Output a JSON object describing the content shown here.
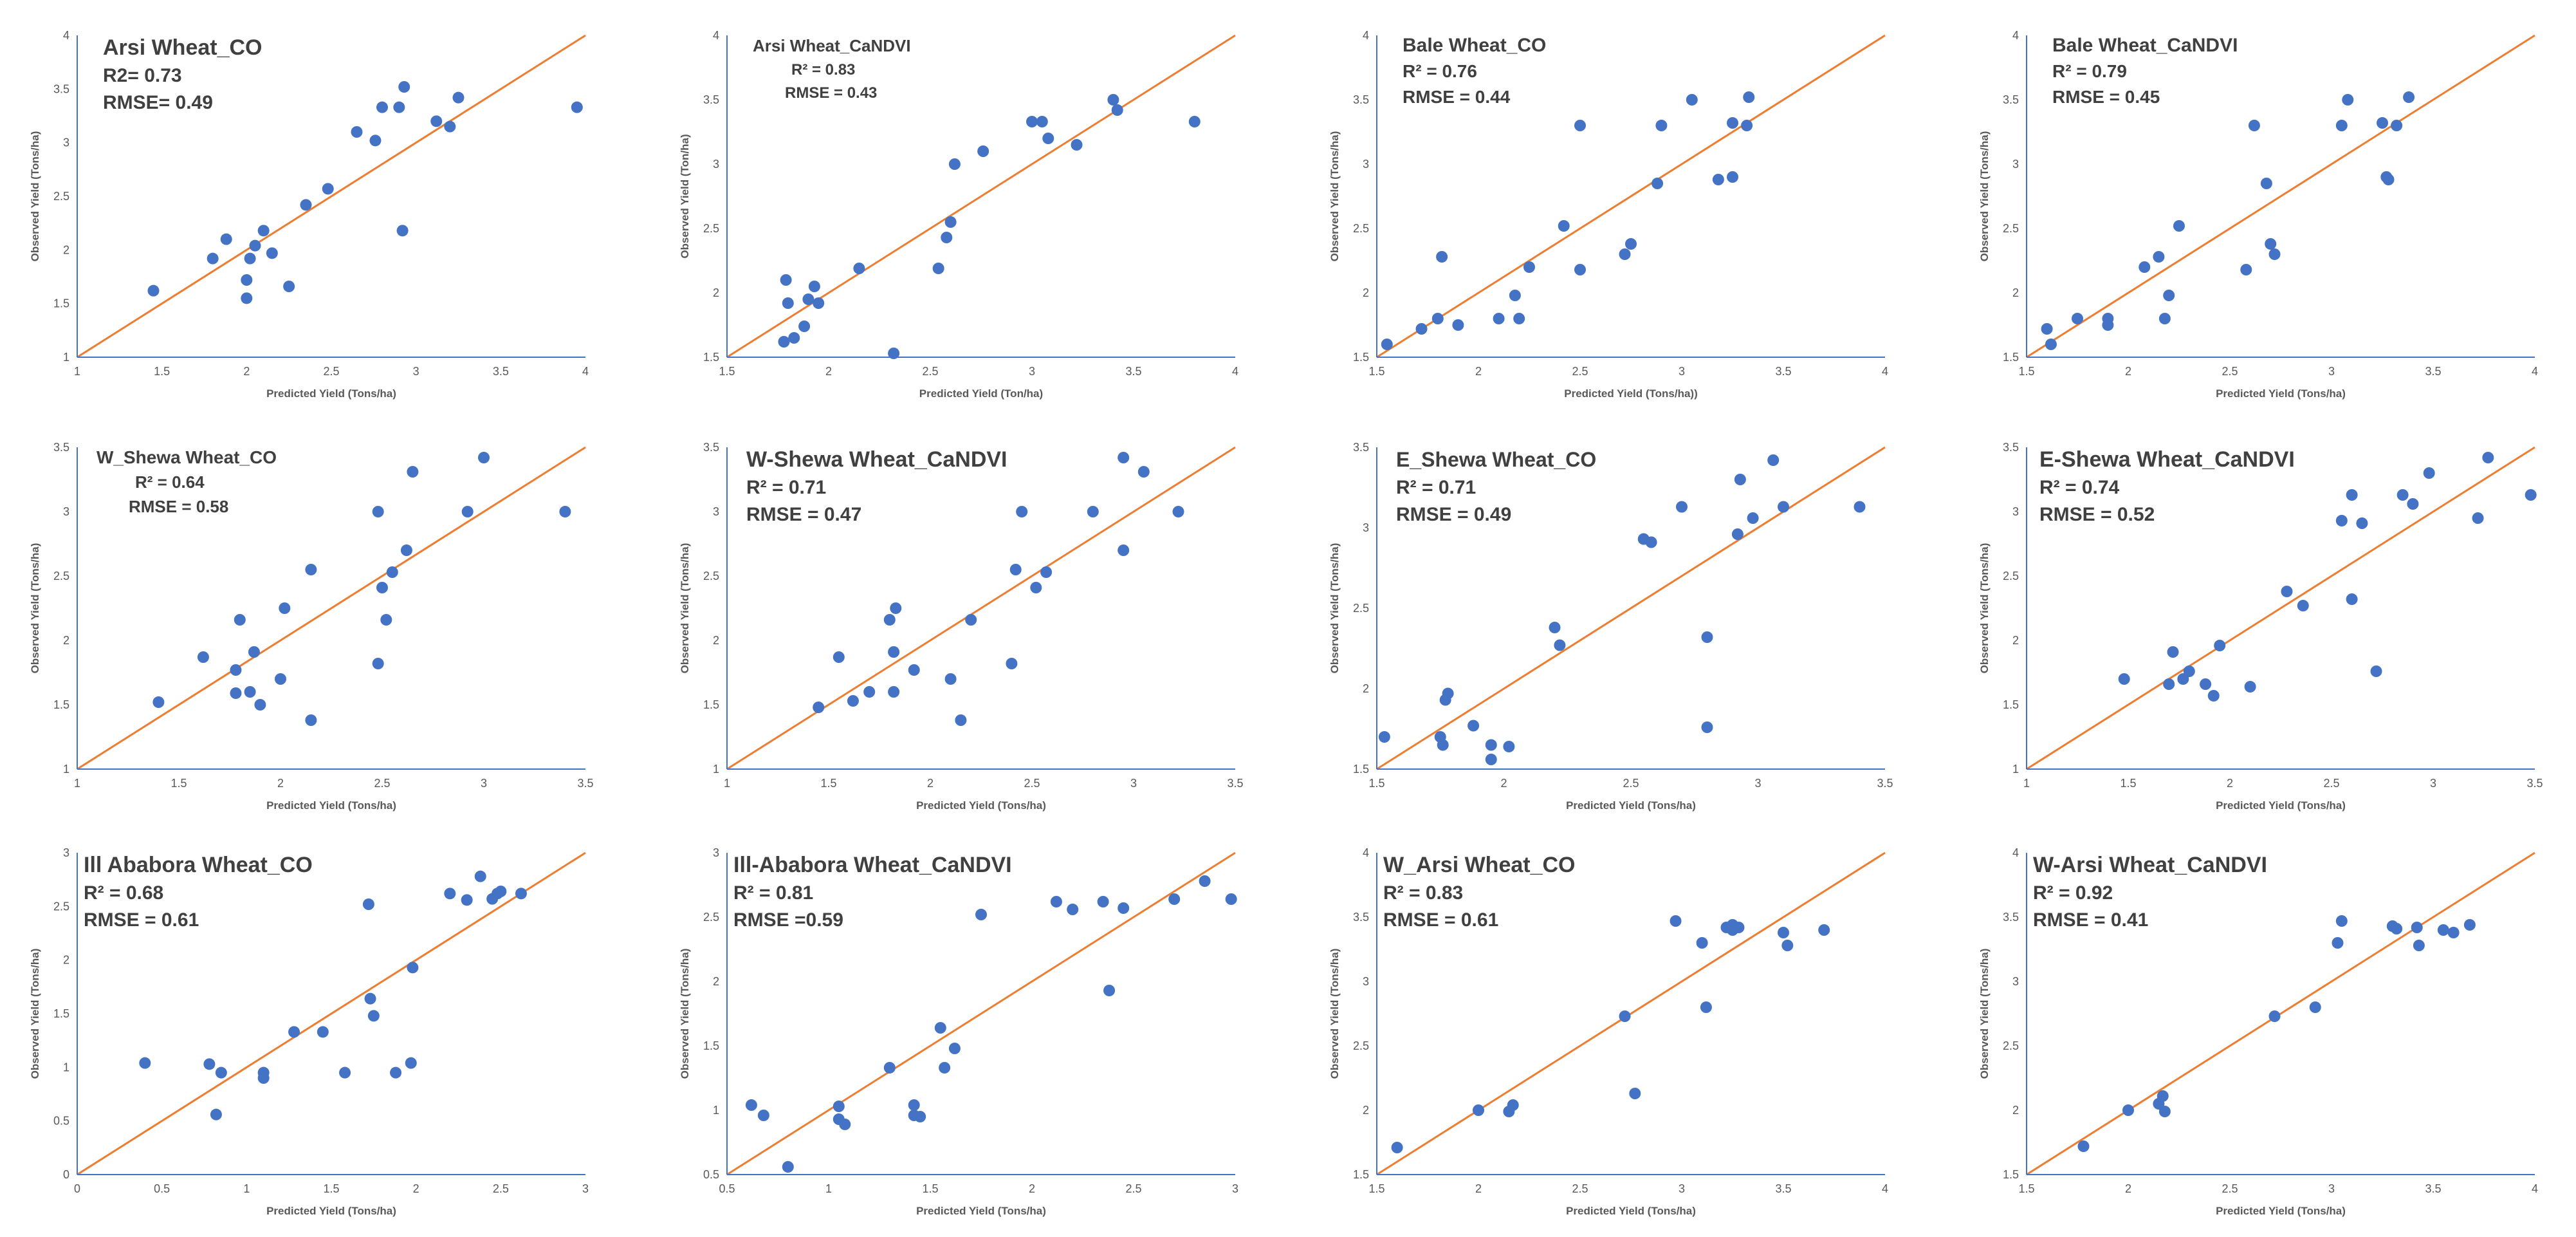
{
  "colors": {
    "point": "#4472C4",
    "line": "#ED7D31",
    "axis": "#4472C4",
    "text": "#404040"
  },
  "chart_data": [
    {
      "type": "scatter",
      "title": "Arsi Wheat_CO",
      "r2": "R2= 0.73",
      "rmse": "RMSE= 0.49",
      "xlabel": "Predicted Yield (Tons/ha)",
      "ylabel": "Observed Yield (Tons/ha)",
      "xlim": [
        1,
        4
      ],
      "ylim": [
        1,
        4
      ],
      "xticks": [
        "1",
        "1.5",
        "2",
        "2.5",
        "3",
        "3.5",
        "4"
      ],
      "yticks": [
        "1",
        "1.5",
        "2",
        "2.5",
        "3",
        "3.5",
        "4"
      ],
      "points": [
        [
          1.45,
          1.62
        ],
        [
          1.8,
          1.92
        ],
        [
          1.88,
          2.1
        ],
        [
          2.0,
          1.72
        ],
        [
          2.0,
          1.55
        ],
        [
          2.02,
          1.92
        ],
        [
          2.05,
          2.04
        ],
        [
          2.1,
          2.18
        ],
        [
          2.15,
          1.97
        ],
        [
          2.25,
          1.66
        ],
        [
          2.35,
          2.42
        ],
        [
          2.48,
          2.57
        ],
        [
          2.65,
          3.1
        ],
        [
          2.76,
          3.02
        ],
        [
          2.8,
          3.33
        ],
        [
          2.9,
          3.33
        ],
        [
          2.92,
          2.18
        ],
        [
          2.93,
          3.52
        ],
        [
          3.12,
          3.2
        ],
        [
          3.2,
          3.15
        ],
        [
          3.25,
          3.42
        ],
        [
          3.95,
          3.33
        ]
      ]
    },
    {
      "type": "scatter",
      "title": "Arsi Wheat_CaNDVI",
      "r2": "R² = 0.83",
      "rmse": "RMSE = 0.43",
      "xlabel": "Predicted Yield (Ton/ha)",
      "ylabel": "Observed Yield (Ton/ha)",
      "xlim": [
        1.5,
        4
      ],
      "ylim": [
        1.5,
        4
      ],
      "xticks": [
        "1.5",
        "2",
        "2.5",
        "3",
        "3.5",
        "4"
      ],
      "yticks": [
        "1.5",
        "2",
        "2.5",
        "3",
        "3.5",
        "4"
      ],
      "points": [
        [
          1.78,
          1.62
        ],
        [
          1.79,
          2.1
        ],
        [
          1.8,
          1.92
        ],
        [
          1.83,
          1.65
        ],
        [
          1.88,
          1.74
        ],
        [
          1.9,
          1.95
        ],
        [
          1.93,
          2.05
        ],
        [
          1.95,
          1.92
        ],
        [
          2.15,
          2.19
        ],
        [
          2.32,
          1.53
        ],
        [
          2.54,
          2.19
        ],
        [
          2.58,
          2.43
        ],
        [
          2.6,
          2.55
        ],
        [
          2.62,
          3.0
        ],
        [
          2.76,
          3.1
        ],
        [
          3.0,
          3.33
        ],
        [
          3.05,
          3.33
        ],
        [
          3.08,
          3.2
        ],
        [
          3.22,
          3.15
        ],
        [
          3.4,
          3.5
        ],
        [
          3.42,
          3.42
        ],
        [
          3.8,
          3.33
        ]
      ]
    },
    {
      "type": "scatter",
      "title": "Bale Wheat_CO",
      "r2": "R² = 0.76",
      "rmse": "RMSE = 0.44",
      "xlabel": "Predicted Yield (Tons/ha))",
      "ylabel": "Observed Yield (Tons/ha)",
      "xlim": [
        1.5,
        4
      ],
      "ylim": [
        1.5,
        4
      ],
      "xticks": [
        "1.5",
        "2",
        "2.5",
        "3",
        "3.5",
        "4"
      ],
      "yticks": [
        "1.5",
        "2",
        "2.5",
        "3",
        "3.5",
        "4"
      ],
      "points": [
        [
          1.55,
          1.6
        ],
        [
          1.72,
          1.72
        ],
        [
          1.8,
          1.8
        ],
        [
          1.82,
          2.28
        ],
        [
          1.9,
          1.75
        ],
        [
          2.1,
          1.8
        ],
        [
          2.18,
          1.98
        ],
        [
          2.2,
          1.8
        ],
        [
          2.25,
          2.2
        ],
        [
          2.42,
          2.52
        ],
        [
          2.5,
          2.18
        ],
        [
          2.5,
          3.3
        ],
        [
          2.72,
          2.3
        ],
        [
          2.75,
          2.38
        ],
        [
          2.88,
          2.85
        ],
        [
          2.9,
          3.3
        ],
        [
          3.05,
          3.5
        ],
        [
          3.18,
          2.88
        ],
        [
          3.25,
          3.32
        ],
        [
          3.25,
          2.9
        ],
        [
          3.32,
          3.3
        ],
        [
          3.33,
          3.52
        ]
      ]
    },
    {
      "type": "scatter",
      "title": "Bale Wheat_CaNDVI",
      "r2": "R² = 0.79",
      "rmse": "RMSE = 0.45",
      "xlabel": "Predicted Yield (Tons/ha)",
      "ylabel": "Observed Yield (Tons/ha)",
      "xlim": [
        1.5,
        4
      ],
      "ylim": [
        1.5,
        4
      ],
      "xticks": [
        "1.5",
        "2",
        "2.5",
        "3",
        "3.5",
        "4"
      ],
      "yticks": [
        "1.5",
        "2",
        "2.5",
        "3",
        "3.5",
        "4"
      ],
      "points": [
        [
          1.6,
          1.72
        ],
        [
          1.62,
          1.6
        ],
        [
          1.75,
          1.8
        ],
        [
          1.9,
          1.8
        ],
        [
          1.9,
          1.75
        ],
        [
          2.08,
          2.2
        ],
        [
          2.15,
          2.28
        ],
        [
          2.18,
          1.8
        ],
        [
          2.2,
          1.98
        ],
        [
          2.25,
          2.52
        ],
        [
          2.58,
          2.18
        ],
        [
          2.62,
          3.3
        ],
        [
          2.68,
          2.85
        ],
        [
          2.7,
          2.38
        ],
        [
          2.72,
          2.3
        ],
        [
          3.05,
          3.3
        ],
        [
          3.08,
          3.5
        ],
        [
          3.25,
          3.32
        ],
        [
          3.27,
          2.9
        ],
        [
          3.28,
          2.88
        ],
        [
          3.32,
          3.3
        ],
        [
          3.38,
          3.52
        ]
      ]
    },
    {
      "type": "scatter",
      "title": "W_Shewa Wheat_CO",
      "r2": "R² = 0.64",
      "rmse": "RMSE = 0.58",
      "xlabel": "Predicted Yield (Tons/ha)",
      "ylabel": "Observed Yield (Tons/ha)",
      "xlim": [
        1,
        3.5
      ],
      "ylim": [
        1,
        3.5
      ],
      "xticks": [
        "1",
        "1.5",
        "2",
        "2.5",
        "3",
        "3.5"
      ],
      "yticks": [
        "1",
        "1.5",
        "2",
        "2.5",
        "3",
        "3.5"
      ],
      "points": [
        [
          1.4,
          1.52
        ],
        [
          1.62,
          1.87
        ],
        [
          1.78,
          1.77
        ],
        [
          1.78,
          1.59
        ],
        [
          1.8,
          2.16
        ],
        [
          1.85,
          1.6
        ],
        [
          1.87,
          1.91
        ],
        [
          1.9,
          1.5
        ],
        [
          2.0,
          1.7
        ],
        [
          2.02,
          2.25
        ],
        [
          2.15,
          1.38
        ],
        [
          2.15,
          2.55
        ],
        [
          2.48,
          1.82
        ],
        [
          2.48,
          3.0
        ],
        [
          2.5,
          2.41
        ],
        [
          2.52,
          2.16
        ],
        [
          2.55,
          2.53
        ],
        [
          2.62,
          2.7
        ],
        [
          2.65,
          3.31
        ],
        [
          2.92,
          3.0
        ],
        [
          3.0,
          3.42
        ],
        [
          3.4,
          3.0
        ]
      ]
    },
    {
      "type": "scatter",
      "title": "W-Shewa Wheat_CaNDVI",
      "r2": "R² = 0.71",
      "rmse": "RMSE = 0.47",
      "xlabel": "Predicted Yield (Tons/ha)",
      "ylabel": "Observed Yield (Tons/ha)",
      "xlim": [
        1,
        3.5
      ],
      "ylim": [
        1,
        3.5
      ],
      "xticks": [
        "1",
        "1.5",
        "2",
        "2.5",
        "3",
        "3.5"
      ],
      "yticks": [
        "1",
        "1.5",
        "2",
        "2.5",
        "3",
        "3.5"
      ],
      "points": [
        [
          1.45,
          1.48
        ],
        [
          1.55,
          1.87
        ],
        [
          1.62,
          1.53
        ],
        [
          1.7,
          1.6
        ],
        [
          1.8,
          2.16
        ],
        [
          1.82,
          1.91
        ],
        [
          1.82,
          1.6
        ],
        [
          1.83,
          2.25
        ],
        [
          1.92,
          1.77
        ],
        [
          2.1,
          1.7
        ],
        [
          2.15,
          1.38
        ],
        [
          2.2,
          2.16
        ],
        [
          2.4,
          1.82
        ],
        [
          2.42,
          2.55
        ],
        [
          2.45,
          3.0
        ],
        [
          2.52,
          2.41
        ],
        [
          2.57,
          2.53
        ],
        [
          2.8,
          3.0
        ],
        [
          2.95,
          2.7
        ],
        [
          2.95,
          3.42
        ],
        [
          3.05,
          3.31
        ],
        [
          3.22,
          3.0
        ]
      ]
    },
    {
      "type": "scatter",
      "title": "E_Shewa Wheat_CO",
      "r2": "R² = 0.71",
      "rmse": "RMSE = 0.49",
      "xlabel": "Predicted Yield (Tons/ha)",
      "ylabel": "Observed Yield (Tons/ha)",
      "xlim": [
        1.5,
        3.5
      ],
      "ylim": [
        1.5,
        3.5
      ],
      "xticks": [
        "1.5",
        "2",
        "2.5",
        "3",
        "3.5"
      ],
      "yticks": [
        "1.5",
        "2",
        "2.5",
        "3",
        "3.5"
      ],
      "points": [
        [
          1.53,
          1.7
        ],
        [
          1.75,
          1.7
        ],
        [
          1.76,
          1.65
        ],
        [
          1.77,
          1.93
        ],
        [
          1.78,
          1.97
        ],
        [
          1.88,
          1.77
        ],
        [
          1.95,
          1.56
        ],
        [
          1.95,
          1.65
        ],
        [
          2.02,
          1.64
        ],
        [
          2.2,
          2.38
        ],
        [
          2.22,
          2.27
        ],
        [
          2.55,
          2.93
        ],
        [
          2.58,
          2.91
        ],
        [
          2.7,
          3.13
        ],
        [
          2.8,
          2.32
        ],
        [
          2.8,
          1.76
        ],
        [
          2.92,
          2.96
        ],
        [
          2.93,
          3.3
        ],
        [
          2.98,
          3.06
        ],
        [
          3.06,
          3.42
        ],
        [
          3.1,
          3.13
        ],
        [
          3.4,
          3.13
        ]
      ]
    },
    {
      "type": "scatter",
      "title": "E-Shewa Wheat_CaNDVI",
      "r2": "R² = 0.74",
      "rmse": "RMSE = 0.52",
      "xlabel": "Predicted Yield (Tons/ha)",
      "ylabel": "Observed Yield (Tons/ha)",
      "xlim": [
        1,
        3.5
      ],
      "ylim": [
        1,
        3.5
      ],
      "xticks": [
        "1",
        "1.5",
        "2",
        "2.5",
        "3",
        "3.5"
      ],
      "yticks": [
        "1",
        "1.5",
        "2",
        "2.5",
        "3",
        "3.5"
      ],
      "points": [
        [
          1.48,
          1.7
        ],
        [
          1.7,
          1.66
        ],
        [
          1.72,
          1.91
        ],
        [
          1.77,
          1.7
        ],
        [
          1.8,
          1.76
        ],
        [
          1.88,
          1.66
        ],
        [
          1.92,
          1.57
        ],
        [
          1.95,
          1.96
        ],
        [
          2.1,
          1.64
        ],
        [
          2.28,
          2.38
        ],
        [
          2.36,
          2.27
        ],
        [
          2.55,
          2.93
        ],
        [
          2.6,
          3.13
        ],
        [
          2.6,
          2.32
        ],
        [
          2.65,
          2.91
        ],
        [
          2.72,
          1.76
        ],
        [
          2.85,
          3.13
        ],
        [
          2.9,
          3.06
        ],
        [
          2.98,
          3.3
        ],
        [
          3.22,
          2.95
        ],
        [
          3.27,
          3.42
        ],
        [
          3.48,
          3.13
        ]
      ]
    },
    {
      "type": "scatter",
      "title": "Ill Ababora Wheat_CO",
      "r2": "R² = 0.68",
      "rmse": "RMSE = 0.61",
      "xlabel": "Predicted Yield (Tons/ha)",
      "ylabel": "Observed Yield (Tons/ha)",
      "xlim": [
        0,
        3
      ],
      "ylim": [
        0,
        3
      ],
      "xticks": [
        "0",
        "0.5",
        "1",
        "1.5",
        "2",
        "2.5",
        "3"
      ],
      "yticks": [
        "0",
        "0.5",
        "1",
        "1.5",
        "2",
        "2.5",
        "3"
      ],
      "points": [
        [
          0.4,
          1.04
        ],
        [
          0.78,
          1.03
        ],
        [
          0.82,
          0.56
        ],
        [
          0.85,
          0.95
        ],
        [
          1.1,
          0.95
        ],
        [
          1.1,
          0.9
        ],
        [
          1.28,
          1.33
        ],
        [
          1.45,
          1.33
        ],
        [
          1.58,
          0.95
        ],
        [
          1.72,
          2.52
        ],
        [
          1.73,
          1.64
        ],
        [
          1.75,
          1.48
        ],
        [
          1.88,
          0.95
        ],
        [
          1.97,
          1.04
        ],
        [
          1.98,
          1.93
        ],
        [
          2.2,
          2.62
        ],
        [
          2.3,
          2.56
        ],
        [
          2.38,
          2.78
        ],
        [
          2.45,
          2.57
        ],
        [
          2.48,
          2.62
        ],
        [
          2.5,
          2.64
        ],
        [
          2.62,
          2.62
        ]
      ]
    },
    {
      "type": "scatter",
      "title": "Ill-Ababora Wheat_CaNDVI",
      "r2": "R² = 0.81",
      "rmse": "RMSE =0.59",
      "xlabel": "Predicted Yield (Tons/ha)",
      "ylabel": "Observed Yield (Tons/ha)",
      "xlim": [
        0.5,
        3
      ],
      "ylim": [
        0.5,
        3
      ],
      "xticks": [
        "0.5",
        "1",
        "1.5",
        "2",
        "2.5",
        "3"
      ],
      "yticks": [
        "0.5",
        "1",
        "1.5",
        "2",
        "2.5",
        "3"
      ],
      "points": [
        [
          0.62,
          1.04
        ],
        [
          0.68,
          0.96
        ],
        [
          0.8,
          0.56
        ],
        [
          1.05,
          0.93
        ],
        [
          1.05,
          1.03
        ],
        [
          1.08,
          0.89
        ],
        [
          1.3,
          1.33
        ],
        [
          1.42,
          1.04
        ],
        [
          1.42,
          0.96
        ],
        [
          1.45,
          0.95
        ],
        [
          1.55,
          1.64
        ],
        [
          1.57,
          1.33
        ],
        [
          1.62,
          1.48
        ],
        [
          1.75,
          2.52
        ],
        [
          2.12,
          2.62
        ],
        [
          2.2,
          2.56
        ],
        [
          2.35,
          2.62
        ],
        [
          2.38,
          1.93
        ],
        [
          2.45,
          2.57
        ],
        [
          2.7,
          2.64
        ],
        [
          2.85,
          2.78
        ],
        [
          2.98,
          2.64
        ]
      ]
    },
    {
      "type": "scatter",
      "title": "W_Arsi Wheat_CO",
      "r2": "R² = 0.83",
      "rmse": "RMSE = 0.61",
      "xlabel": "Predicted Yield (Tons/ha)",
      "ylabel": "Observed Yield (Tons/ha)",
      "xlim": [
        1.5,
        4
      ],
      "ylim": [
        1.5,
        4
      ],
      "xticks": [
        "1.5",
        "2",
        "2.5",
        "3",
        "3.5",
        "4"
      ],
      "yticks": [
        "1.5",
        "2",
        "2.5",
        "3",
        "3.5",
        "4"
      ],
      "points": [
        [
          1.6,
          1.71
        ],
        [
          2.0,
          2.0
        ],
        [
          2.15,
          1.99
        ],
        [
          2.17,
          2.04
        ],
        [
          2.72,
          2.73
        ],
        [
          2.77,
          2.13
        ],
        [
          2.97,
          3.47
        ],
        [
          3.1,
          3.3
        ],
        [
          3.12,
          2.8
        ],
        [
          3.22,
          3.42
        ],
        [
          3.25,
          3.44
        ],
        [
          3.25,
          3.4
        ],
        [
          3.28,
          3.42
        ],
        [
          3.5,
          3.38
        ],
        [
          3.52,
          3.28
        ],
        [
          3.7,
          3.4
        ]
      ]
    },
    {
      "type": "scatter",
      "title": "W-Arsi Wheat_CaNDVI",
      "r2": "R² = 0.92",
      "rmse": "RMSE = 0.41",
      "xlabel": "Predicted Yield (Tons/ha)",
      "ylabel": "Observed Yield (Tons/ha)",
      "xlim": [
        1.5,
        4
      ],
      "ylim": [
        1.5,
        4
      ],
      "xticks": [
        "1.5",
        "2",
        "2.5",
        "3",
        "3.5",
        "4"
      ],
      "yticks": [
        "1.5",
        "2",
        "2.5",
        "3",
        "3.5",
        "4"
      ],
      "points": [
        [
          1.78,
          1.72
        ],
        [
          2.0,
          2.0
        ],
        [
          2.15,
          2.05
        ],
        [
          2.17,
          2.11
        ],
        [
          2.18,
          1.99
        ],
        [
          2.72,
          2.73
        ],
        [
          2.92,
          2.8
        ],
        [
          3.03,
          3.3
        ],
        [
          3.05,
          3.47
        ],
        [
          3.3,
          3.43
        ],
        [
          3.32,
          3.41
        ],
        [
          3.42,
          3.42
        ],
        [
          3.43,
          3.28
        ],
        [
          3.55,
          3.4
        ],
        [
          3.6,
          3.38
        ],
        [
          3.68,
          3.44
        ]
      ]
    }
  ]
}
